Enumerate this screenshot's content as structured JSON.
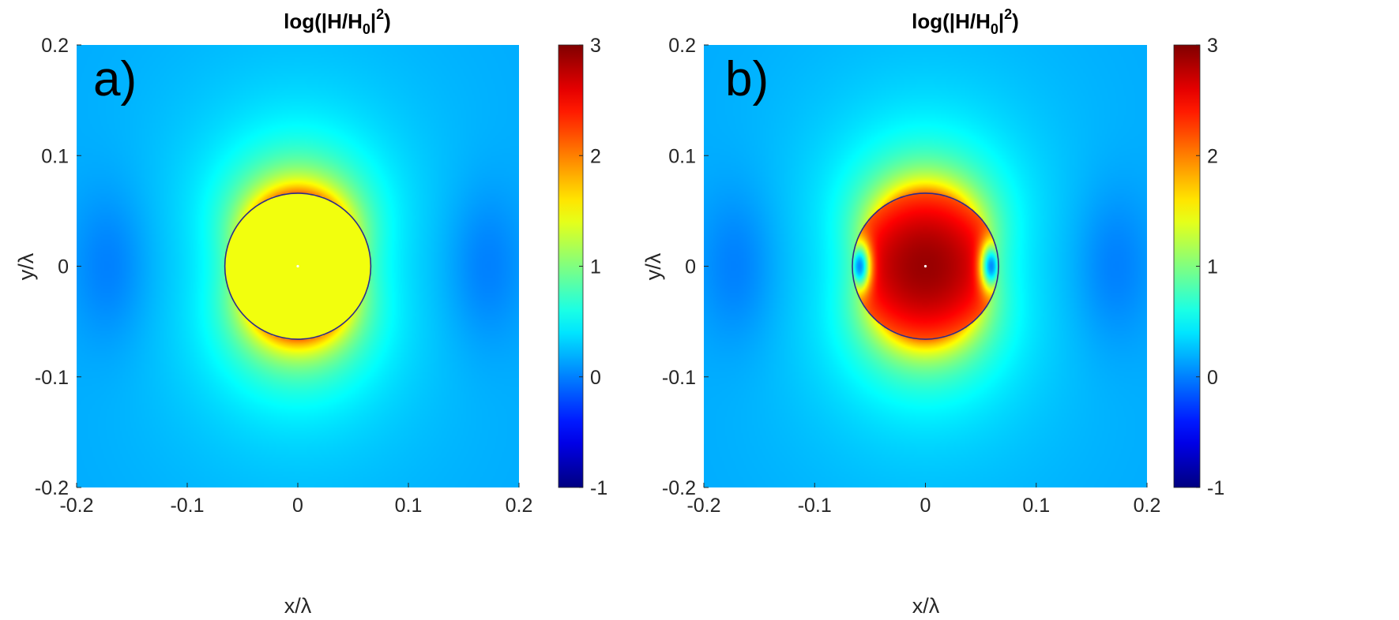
{
  "chart_data": [
    {
      "type": "heatmap",
      "panel_label": "a)",
      "title": {
        "text": "log(|H/H",
        "sub": "0",
        "close": "|",
        "sup": "2",
        "end": ")"
      },
      "xlabel": "x/λ",
      "ylabel": "y/λ",
      "xlim": [
        -0.2,
        0.2
      ],
      "ylim": [
        -0.2,
        0.2
      ],
      "x_ticks": [
        "-0.2",
        "-0.1",
        "0",
        "0.1",
        "0.2"
      ],
      "y_ticks": [
        "-0.2",
        "-0.1",
        "0",
        "0.1",
        "0.2"
      ],
      "colorbar": {
        "limits": [
          -1,
          3
        ],
        "ticks": [
          "3",
          "2",
          "1",
          "0",
          "-1"
        ],
        "colormap": "jet"
      },
      "field": {
        "background_level": 0.15,
        "cylinder_center": [
          0,
          0
        ],
        "cylinder_radius": 0.066,
        "interior_level": 1.45,
        "interior_edge_hotspots_level": null,
        "outer_peak_level": 2.1,
        "outer_lobes": "top and bottom of cylinder"
      },
      "circle_color": "#2b2b8c"
    },
    {
      "type": "heatmap",
      "panel_label": "b)",
      "title": {
        "text": "log(|H/H",
        "sub": "0",
        "close": "|",
        "sup": "2",
        "end": ")"
      },
      "xlabel": "x/λ",
      "ylabel": "y/λ",
      "xlim": [
        -0.2,
        0.2
      ],
      "ylim": [
        -0.2,
        0.2
      ],
      "x_ticks": [
        "-0.2",
        "-0.1",
        "0",
        "0.1",
        "0.2"
      ],
      "y_ticks": [
        "-0.2",
        "-0.1",
        "0",
        "0.1",
        "0.2"
      ],
      "colorbar": {
        "limits": [
          -1,
          3
        ],
        "ticks": [
          "3",
          "2",
          "1",
          "0",
          "-1"
        ],
        "colormap": "jet"
      },
      "field": {
        "background_level": 0.15,
        "cylinder_center": [
          0,
          0
        ],
        "cylinder_radius": 0.066,
        "interior_level": 2.9,
        "interior_edge_hotspots_level": 0.05,
        "outer_peak_level": 2.1,
        "outer_lobes": "top and bottom of cylinder"
      },
      "circle_color": "#2b2b8c"
    }
  ]
}
